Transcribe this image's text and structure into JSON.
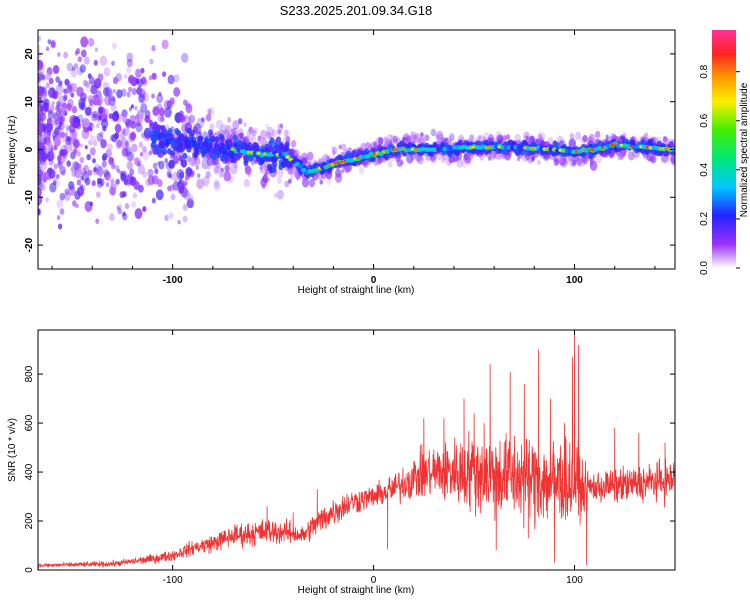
{
  "title": "S233.2025.201.09.34.G18",
  "colors": {
    "snr_line": "#ee3333",
    "frame": "#000000"
  },
  "chart_data": [
    {
      "type": "heatmap",
      "xlabel": "Height of straight line (km)",
      "ylabel": "Frequency (Hz)",
      "xlim": [
        -167,
        150
      ],
      "ylim": [
        -25,
        25
      ],
      "x_ticks": [
        -100,
        0,
        100
      ],
      "y_ticks": [
        -20,
        -10,
        0,
        10,
        20
      ],
      "colorbar": {
        "label": "Normalized spectral amplitude",
        "range": [
          0,
          0.97
        ],
        "ticks": [
          0.0,
          0.2,
          0.4,
          0.6,
          0.8
        ]
      },
      "ridge": [
        {
          "x": -167,
          "y": 4
        },
        {
          "x": -120,
          "y": 3
        },
        {
          "x": -90,
          "y": 1
        },
        {
          "x": -70,
          "y": 0
        },
        {
          "x": -55,
          "y": -1
        },
        {
          "x": -45,
          "y": -1
        },
        {
          "x": -38,
          "y": -3
        },
        {
          "x": -33,
          "y": -5
        },
        {
          "x": -28,
          "y": -4
        },
        {
          "x": -20,
          "y": -3
        },
        {
          "x": -10,
          "y": -2
        },
        {
          "x": 0,
          "y": -1
        },
        {
          "x": 10,
          "y": 0
        },
        {
          "x": 30,
          "y": 0
        },
        {
          "x": 50,
          "y": 0.5
        },
        {
          "x": 70,
          "y": 0.5
        },
        {
          "x": 90,
          "y": 0
        },
        {
          "x": 100,
          "y": -0.5
        },
        {
          "x": 110,
          "y": 0
        },
        {
          "x": 120,
          "y": 1
        },
        {
          "x": 135,
          "y": 0.5
        },
        {
          "x": 150,
          "y": 0
        }
      ]
    },
    {
      "type": "line",
      "xlabel": "Height of straight line (km)",
      "ylabel": "SNR (10 * v/v)",
      "xlim": [
        -167,
        150
      ],
      "ylim": [
        0,
        980
      ],
      "x_ticks": [
        -100,
        0,
        100
      ],
      "y_ticks": [
        0,
        200,
        400,
        600,
        800
      ],
      "series": [
        {
          "envelope": [
            {
              "x": -167,
              "mean": 18,
              "amp": 12
            },
            {
              "x": -130,
              "mean": 25,
              "amp": 15
            },
            {
              "x": -110,
              "mean": 45,
              "amp": 25
            },
            {
              "x": -100,
              "mean": 60,
              "amp": 30
            },
            {
              "x": -90,
              "mean": 90,
              "amp": 40
            },
            {
              "x": -80,
              "mean": 110,
              "amp": 50
            },
            {
              "x": -70,
              "mean": 140,
              "amp": 60
            },
            {
              "x": -60,
              "mean": 150,
              "amp": 70
            },
            {
              "x": -50,
              "mean": 160,
              "amp": 70
            },
            {
              "x": -40,
              "mean": 150,
              "amp": 60
            },
            {
              "x": -35,
              "mean": 140,
              "amp": 50
            },
            {
              "x": -30,
              "mean": 180,
              "amp": 70
            },
            {
              "x": -20,
              "mean": 240,
              "amp": 80
            },
            {
              "x": -10,
              "mean": 280,
              "amp": 70
            },
            {
              "x": 0,
              "mean": 300,
              "amp": 60
            },
            {
              "x": 10,
              "mean": 330,
              "amp": 80
            },
            {
              "x": 20,
              "mean": 380,
              "amp": 120
            },
            {
              "x": 30,
              "mean": 400,
              "amp": 150
            },
            {
              "x": 40,
              "mean": 400,
              "amp": 180
            },
            {
              "x": 50,
              "mean": 400,
              "amp": 220
            },
            {
              "x": 60,
              "mean": 390,
              "amp": 230
            },
            {
              "x": 70,
              "mean": 380,
              "amp": 240
            },
            {
              "x": 80,
              "mean": 370,
              "amp": 240
            },
            {
              "x": 90,
              "mean": 360,
              "amp": 250
            },
            {
              "x": 100,
              "mean": 360,
              "amp": 220
            },
            {
              "x": 105,
              "mean": 330,
              "amp": 120
            },
            {
              "x": 110,
              "mean": 340,
              "amp": 90
            },
            {
              "x": 130,
              "mean": 350,
              "amp": 100
            },
            {
              "x": 150,
              "mean": 370,
              "amp": 110
            }
          ],
          "spikes": [
            {
              "x": -53,
              "y": 260
            },
            {
              "x": -40,
              "y": 235
            },
            {
              "x": -28,
              "y": 330
            },
            {
              "x": 7,
              "y": 85
            },
            {
              "x": 8,
              "y": 380
            },
            {
              "x": 25,
              "y": 620
            },
            {
              "x": 35,
              "y": 620
            },
            {
              "x": 45,
              "y": 700
            },
            {
              "x": 50,
              "y": 640
            },
            {
              "x": 55,
              "y": 600
            },
            {
              "x": 58,
              "y": 840
            },
            {
              "x": 61,
              "y": 80
            },
            {
              "x": 68,
              "y": 810
            },
            {
              "x": 75,
              "y": 760
            },
            {
              "x": 77,
              "y": 130
            },
            {
              "x": 82,
              "y": 900
            },
            {
              "x": 88,
              "y": 700
            },
            {
              "x": 90,
              "y": 30
            },
            {
              "x": 95,
              "y": 600
            },
            {
              "x": 99,
              "y": 870
            },
            {
              "x": 100,
              "y": 980
            },
            {
              "x": 102,
              "y": 920
            },
            {
              "x": 106,
              "y": 20
            },
            {
              "x": 120,
              "y": 580
            },
            {
              "x": 132,
              "y": 560
            },
            {
              "x": 145,
              "y": 520
            }
          ]
        }
      ]
    }
  ]
}
